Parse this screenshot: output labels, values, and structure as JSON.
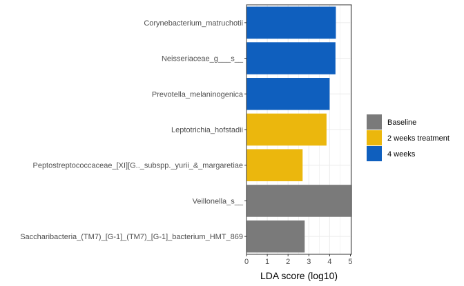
{
  "chart_data": {
    "type": "bar",
    "orientation": "horizontal",
    "title": "",
    "xlabel": "LDA score (log10)",
    "ylabel": "",
    "xlim": [
      0,
      5.05
    ],
    "xticks": [
      "0",
      "1",
      "2",
      "3",
      "4",
      "5"
    ],
    "grid": true,
    "legend_position": "right",
    "legend": [
      {
        "label": "Baseline",
        "color": "#7a7a7a"
      },
      {
        "label": "2 weeks treatment",
        "color": "#ebb70d"
      },
      {
        "label": "4 weeks",
        "color": "#0f5fbe"
      }
    ],
    "bars": [
      {
        "category": "Corynebacterium_matruchotii",
        "value": 4.3,
        "group": "4 weeks"
      },
      {
        "category": "Neisseriaceae_g___s__",
        "value": 4.28,
        "group": "4 weeks"
      },
      {
        "category": "Prevotella_melaninogenica",
        "value": 4.0,
        "group": "4 weeks"
      },
      {
        "category": "Leptotrichia_hofstadii",
        "value": 3.85,
        "group": "2 weeks treatment"
      },
      {
        "category": "Peptostreptococcaceae_[XI][G.._subspp._yurii_&_margaretiae",
        "value": 2.7,
        "group": "2 weeks treatment"
      },
      {
        "category": "Veillonella_s__",
        "value": 5.05,
        "group": "Baseline"
      },
      {
        "category": "Saccharibacteria_(TM7)_[G-1]_(TM7)_[G-1]_bacterium_HMT_869",
        "value": 2.8,
        "group": "Baseline"
      }
    ]
  }
}
